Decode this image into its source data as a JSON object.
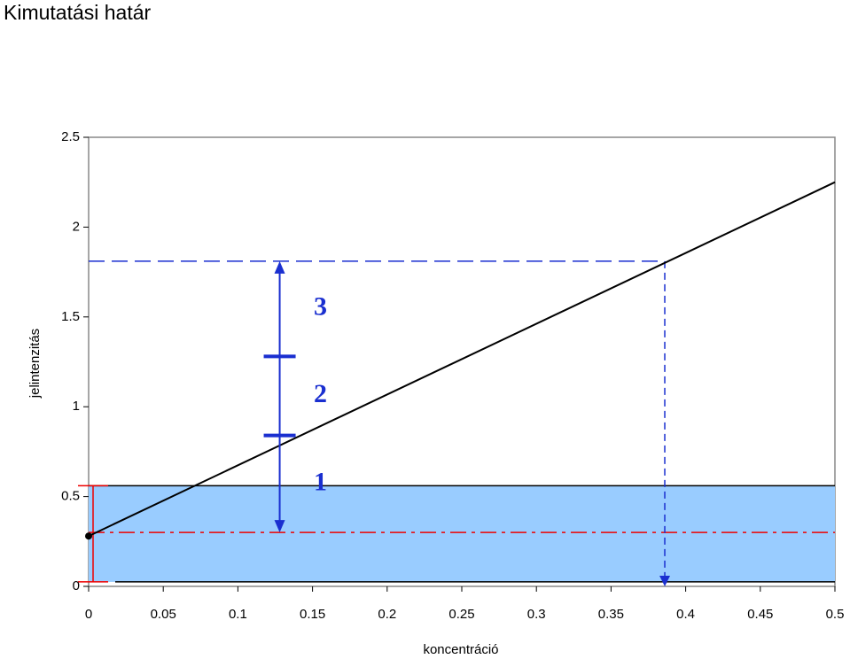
{
  "chart_data": {
    "type": "line",
    "title": "Kimutatási határ",
    "x_label": "koncentráció",
    "y_label": "jelintenzitás",
    "xlim": [
      0,
      0.5
    ],
    "ylim": [
      0,
      2.5
    ],
    "xticks": [
      0,
      0.05,
      0.1,
      0.15,
      0.2,
      0.25,
      0.3,
      0.35,
      0.4,
      0.45,
      0.5
    ],
    "yticks": [
      0,
      0.5,
      1,
      1.5,
      2,
      2.5
    ],
    "series": [
      {
        "color": "#000000",
        "x": [
          0,
          0.5
        ],
        "y": [
          0.28,
          2.25
        ]
      }
    ],
    "band": [
      0.025,
      0.56
    ],
    "band_color": "#99ccff",
    "blank_level": 0.3,
    "detection_signal": 1.81,
    "detection_limit": 0.386,
    "arrow_x": 0.128,
    "steps": [
      0.84,
      1.28
    ],
    "step_labels": [
      "1",
      "2",
      "3"
    ]
  }
}
